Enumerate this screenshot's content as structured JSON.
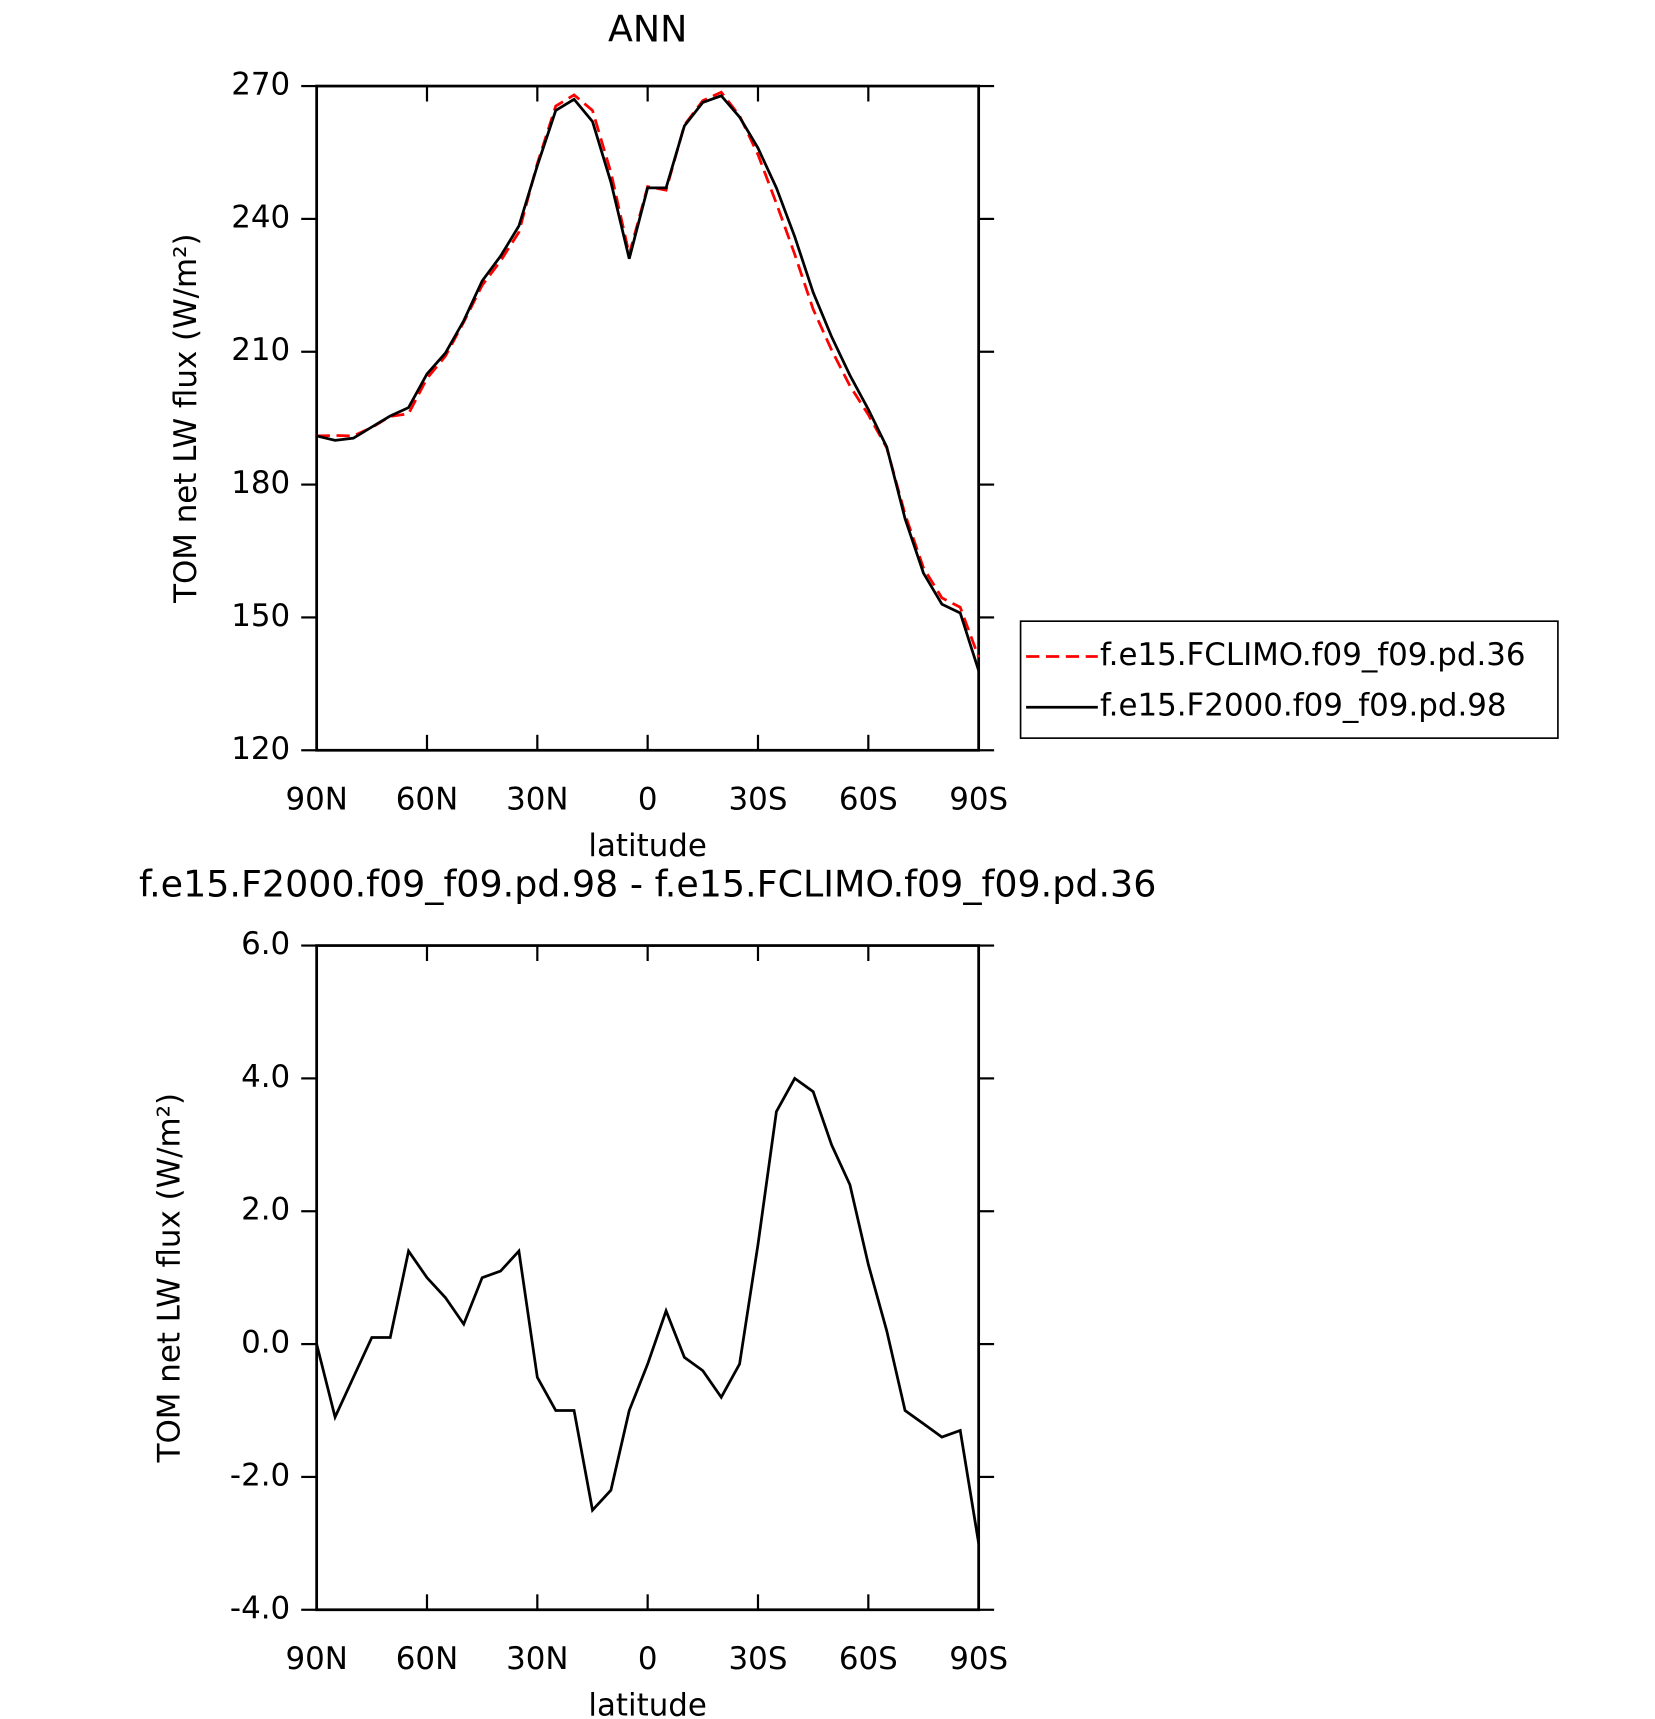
{
  "chart_data": [
    {
      "type": "line",
      "title": "ANN",
      "xlabel": "latitude",
      "ylabel": "TOM net LW flux (W/m²)",
      "x": [
        90,
        85,
        80,
        75,
        70,
        65,
        60,
        55,
        50,
        45,
        40,
        35,
        30,
        25,
        20,
        15,
        10,
        5,
        0,
        -5,
        -10,
        -15,
        -20,
        -25,
        -30,
        -35,
        -40,
        -45,
        -50,
        -55,
        -60,
        -65,
        -70,
        -75,
        -80,
        -85,
        -90
      ],
      "xlim": [
        90,
        -90
      ],
      "xticks": [
        {
          "value": 90,
          "label": "90N"
        },
        {
          "value": 60,
          "label": "60N"
        },
        {
          "value": 30,
          "label": "30N"
        },
        0,
        {
          "value": -30,
          "label": "30S"
        },
        {
          "value": -60,
          "label": "60S"
        },
        {
          "value": -90,
          "label": "90S"
        }
      ],
      "ylim": [
        120,
        270
      ],
      "yticks": [
        120,
        150,
        180,
        210,
        240,
        270
      ],
      "series": [
        {
          "name": "f.e15.FCLIMO.f09_f09.pd.36",
          "color": "#ff0000",
          "dash": true,
          "values": [
            191,
            191.1,
            191,
            192.9,
            195.4,
            196,
            204,
            209,
            216.7,
            225,
            230.5,
            237,
            252.5,
            265.5,
            268,
            264.5,
            250.5,
            232,
            247.3,
            246.5,
            261.2,
            266.7,
            268.6,
            263.3,
            254.5,
            243.5,
            232,
            219.6,
            210.4,
            202.3,
            195.8,
            188.3,
            173.3,
            161.2,
            154.4,
            152.3,
            141
          ]
        },
        {
          "name": "f.e15.F2000.f09_f09.pd.98",
          "color": "#000000",
          "dash": false,
          "values": [
            191,
            190,
            190.5,
            193,
            195.5,
            197.4,
            205,
            209.7,
            217,
            226,
            231.6,
            238.4,
            252,
            264.5,
            267,
            262,
            248.3,
            231,
            247,
            247,
            261,
            266.3,
            267.8,
            263,
            256,
            247,
            236,
            223.4,
            213.4,
            204.7,
            197,
            188.5,
            172.3,
            160,
            153,
            151,
            138
          ]
        }
      ]
    },
    {
      "type": "line",
      "title": "f.e15.F2000.f09_f09.pd.98 - f.e15.FCLIMO.f09_f09.pd.36",
      "xlabel": "latitude",
      "ylabel": "TOM net LW flux (W/m²)",
      "x": [
        90,
        85,
        80,
        75,
        70,
        65,
        60,
        55,
        50,
        45,
        40,
        35,
        30,
        25,
        20,
        15,
        10,
        5,
        0,
        -5,
        -10,
        -15,
        -20,
        -25,
        -30,
        -35,
        -40,
        -45,
        -50,
        -55,
        -60,
        -65,
        -70,
        -75,
        -80,
        -85,
        -90
      ],
      "xlim": [
        90,
        -90
      ],
      "xticks": [
        {
          "value": 90,
          "label": "90N"
        },
        {
          "value": 60,
          "label": "60N"
        },
        {
          "value": 30,
          "label": "30N"
        },
        0,
        {
          "value": -30,
          "label": "30S"
        },
        {
          "value": -60,
          "label": "60S"
        },
        {
          "value": -90,
          "label": "90S"
        }
      ],
      "ylim": [
        -4,
        6
      ],
      "yticks": [
        {
          "value": -4,
          "label": "-4.0"
        },
        {
          "value": -2,
          "label": "-2.0"
        },
        {
          "value": 0,
          "label": "0.0"
        },
        {
          "value": 2,
          "label": "2.0"
        },
        {
          "value": 4,
          "label": "4.0"
        },
        {
          "value": 6,
          "label": "6.0"
        }
      ],
      "color": "#000000",
      "values": [
        0,
        -1.1,
        -0.5,
        0.1,
        0.1,
        1.4,
        1.0,
        0.7,
        0.3,
        1.0,
        1.1,
        1.4,
        -0.5,
        -1.0,
        -1.0,
        -2.5,
        -2.2,
        -1.0,
        -0.3,
        0.5,
        -0.2,
        -0.4,
        -0.8,
        -0.3,
        1.5,
        3.5,
        4.0,
        3.8,
        3.0,
        2.4,
        1.2,
        0.2,
        -1.0,
        -1.2,
        -1.4,
        -1.3,
        -3.0
      ]
    }
  ]
}
